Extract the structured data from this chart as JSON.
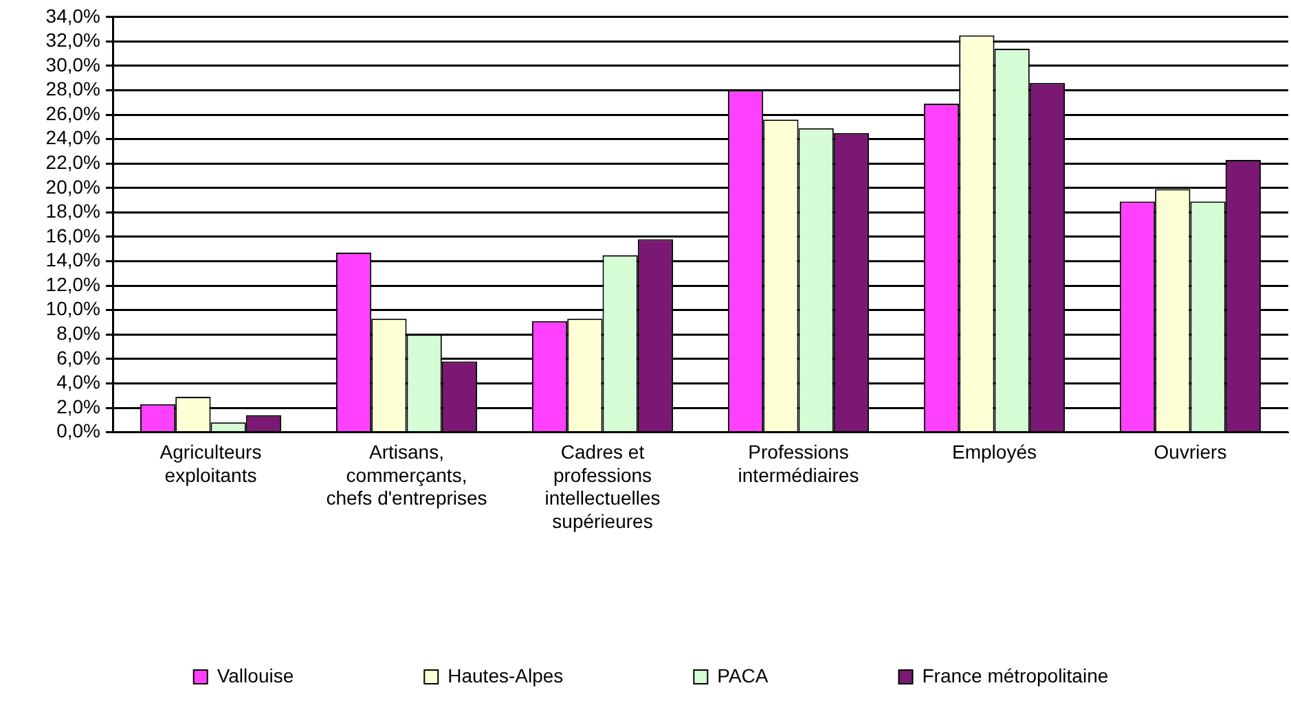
{
  "chart_data": {
    "type": "bar",
    "categories": [
      "Agriculteurs\nexploitants",
      "Artisans,\ncommerçants,\nchefs d'entreprises",
      "Cadres et\nprofessions\nintellectuelles\nsupérieures",
      "Professions\nintermédiaires",
      "Employés",
      "Ouvriers"
    ],
    "series": [
      {
        "name": "Vallouise",
        "color": "#ff40ff",
        "values": [
          2.3,
          14.7,
          9.1,
          28.0,
          26.9,
          18.9
        ]
      },
      {
        "name": "Hautes-Alpes",
        "color": "#ffffd5",
        "values": [
          2.9,
          9.3,
          9.3,
          25.6,
          32.5,
          19.9
        ]
      },
      {
        "name": "PACA",
        "color": "#d5fcd5",
        "values": [
          0.8,
          8.0,
          14.5,
          24.9,
          31.4,
          18.9
        ]
      },
      {
        "name": "France métropolitaine",
        "color": "#7b1874",
        "values": [
          1.4,
          5.8,
          15.8,
          24.5,
          28.6,
          22.3
        ]
      }
    ],
    "ylim": [
      0,
      34
    ],
    "yticks": [
      {
        "value": 0,
        "label": "0,0%"
      },
      {
        "value": 2,
        "label": "2,0%"
      },
      {
        "value": 4,
        "label": "4,0%"
      },
      {
        "value": 6,
        "label": "6,0%"
      },
      {
        "value": 8,
        "label": "8,0%"
      },
      {
        "value": 10,
        "label": "10,0%"
      },
      {
        "value": 12,
        "label": "12,0%"
      },
      {
        "value": 14,
        "label": "14,0%"
      },
      {
        "value": 16,
        "label": "16,0%"
      },
      {
        "value": 18,
        "label": "18,0%"
      },
      {
        "value": 20,
        "label": "20,0%"
      },
      {
        "value": 22,
        "label": "22,0%"
      },
      {
        "value": 24,
        "label": "24,0%"
      },
      {
        "value": 26,
        "label": "26,0%"
      },
      {
        "value": 28,
        "label": "28,0%"
      },
      {
        "value": 30,
        "label": "30,0%"
      },
      {
        "value": 32,
        "label": "32,0%"
      },
      {
        "value": 34,
        "label": "34,0%"
      }
    ],
    "grid": "y",
    "legend": "bottom"
  }
}
